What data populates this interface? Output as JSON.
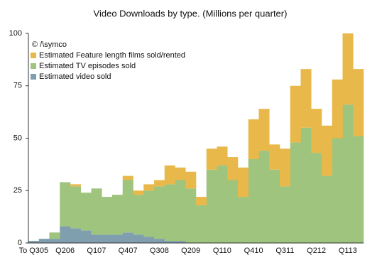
{
  "chart_data": {
    "type": "stacked-bar",
    "title": "Video Downloads by type. (Millions per quarter)",
    "annotation": "© /\\symco",
    "categories": [
      "To Q305",
      null,
      null,
      "Q206",
      null,
      null,
      "Q107",
      null,
      null,
      "Q407",
      null,
      null,
      "Q308",
      null,
      null,
      "Q209",
      null,
      null,
      "Q110",
      null,
      null,
      "Q410",
      null,
      null,
      "Q311",
      null,
      null,
      "Q212",
      null,
      null,
      "Q113",
      null
    ],
    "series": [
      {
        "name": "Estimated video sold",
        "color": "#7f9fae",
        "values": [
          1,
          2,
          2,
          8,
          7,
          6,
          4,
          4,
          4,
          5,
          4,
          3,
          2,
          1,
          1,
          0,
          0,
          0,
          0,
          0,
          0,
          0,
          0,
          0,
          0,
          0,
          0,
          0,
          0,
          0,
          0,
          0
        ]
      },
      {
        "name": "Estimated TV episodes sold",
        "color": "#9ec47d",
        "values": [
          0,
          0,
          3,
          21,
          20,
          18,
          22,
          18,
          19,
          25,
          19,
          22,
          25,
          27,
          29,
          26,
          18,
          35,
          37,
          30,
          22,
          40,
          44,
          35,
          27,
          48,
          55,
          43,
          32,
          50,
          66,
          51
        ]
      },
      {
        "name": "Estimated Feature length films sold/rented",
        "color": "#e8b84a",
        "values": [
          0,
          0,
          0,
          0,
          1,
          0,
          0,
          0,
          0,
          2,
          2,
          3,
          3,
          9,
          6,
          8,
          4,
          10,
          9,
          11,
          14,
          19,
          20,
          12,
          18,
          27,
          28,
          21,
          24,
          28,
          34,
          32
        ]
      }
    ],
    "ylim": [
      0,
      100
    ],
    "yticks": [
      0,
      25,
      50,
      75,
      100
    ],
    "grid": false
  }
}
